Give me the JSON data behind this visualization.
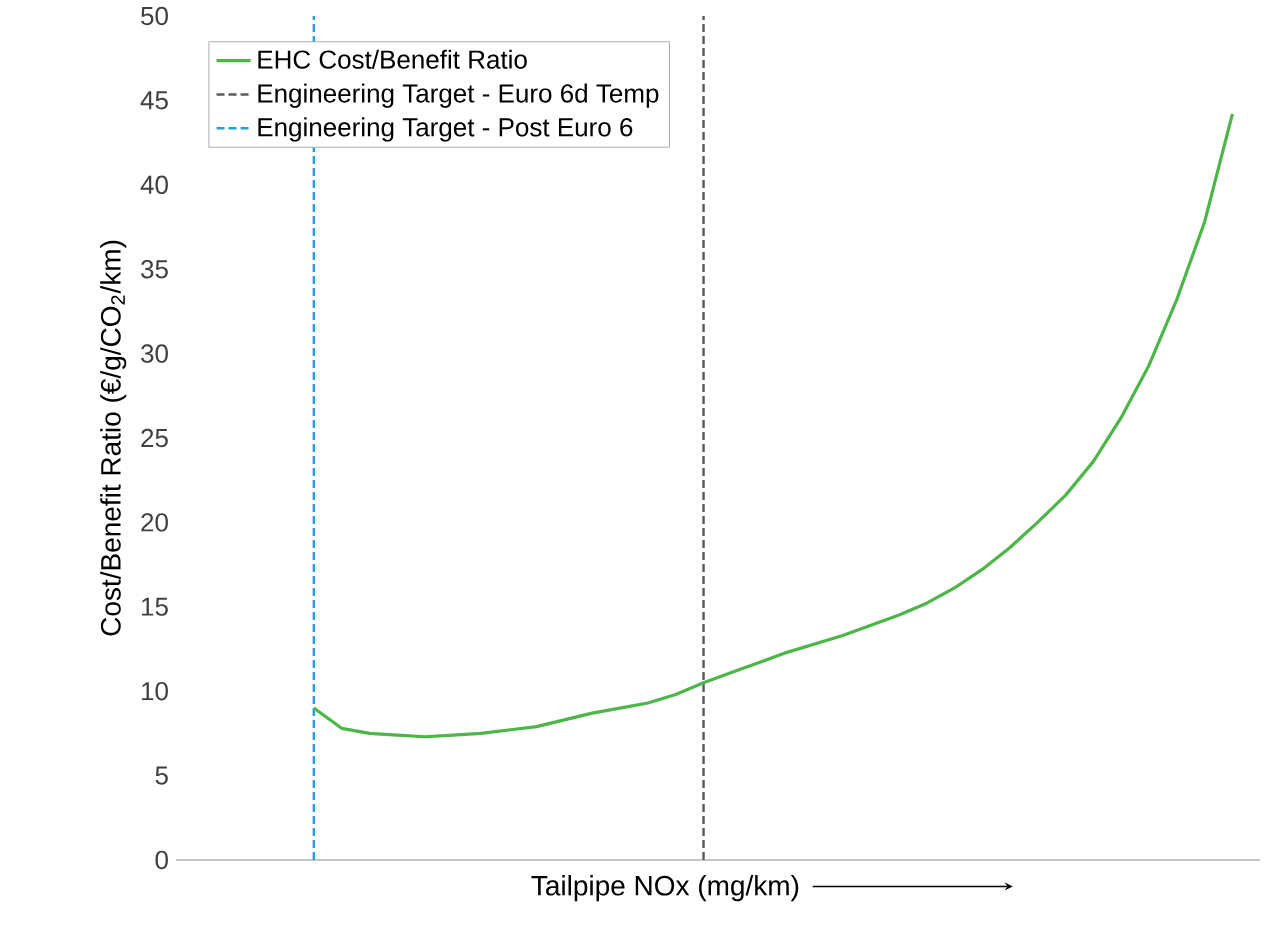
{
  "chart_data": {
    "type": "line",
    "xlabel": "Tailpipe NOx (mg/km)",
    "ylabel": "Cost/Benefit Ratio (€/g/CO$_{2}$/km)",
    "categories": [
      null,
      null,
      null,
      null,
      null,
      null,
      null,
      null,
      null,
      null,
      null,
      null,
      null,
      null,
      null,
      null,
      null,
      null,
      null,
      null,
      null,
      null,
      null,
      null,
      null,
      null,
      null,
      null,
      null,
      null,
      null,
      null,
      null,
      null
    ],
    "ylim": [
      0,
      50
    ],
    "yticks": [
      0,
      5,
      10,
      15,
      20,
      25,
      30,
      35,
      40,
      45,
      50
    ],
    "tick_labels": "y",
    "legend": "top left",
    "series": [
      {
        "name": "EHC Cost/Benefit Ratio",
        "color": "#4cb648",
        "values": [
          9.0,
          7.8,
          7.5,
          7.4,
          7.3,
          7.4,
          7.5,
          7.7,
          7.9,
          8.3,
          8.7,
          9.0,
          9.3,
          9.8,
          10.5,
          11.1,
          11.7,
          12.3,
          12.8,
          13.3,
          13.9,
          14.5,
          15.2,
          16.1,
          17.2,
          18.5,
          20.0,
          21.6,
          23.6,
          26.2,
          29.3,
          33.2,
          37.8,
          44.2
        ]
      }
    ],
    "ref_lines": [
      {
        "axis": "x",
        "label": "Engineering Target - Euro 6d Temp",
        "color": "#595959",
        "line_style": "dashed"
      },
      {
        "axis": "x",
        "label": "Engineering Target - Post Euro 6",
        "color": "#1fa0e0",
        "line_style": "dashed"
      }
    ]
  }
}
